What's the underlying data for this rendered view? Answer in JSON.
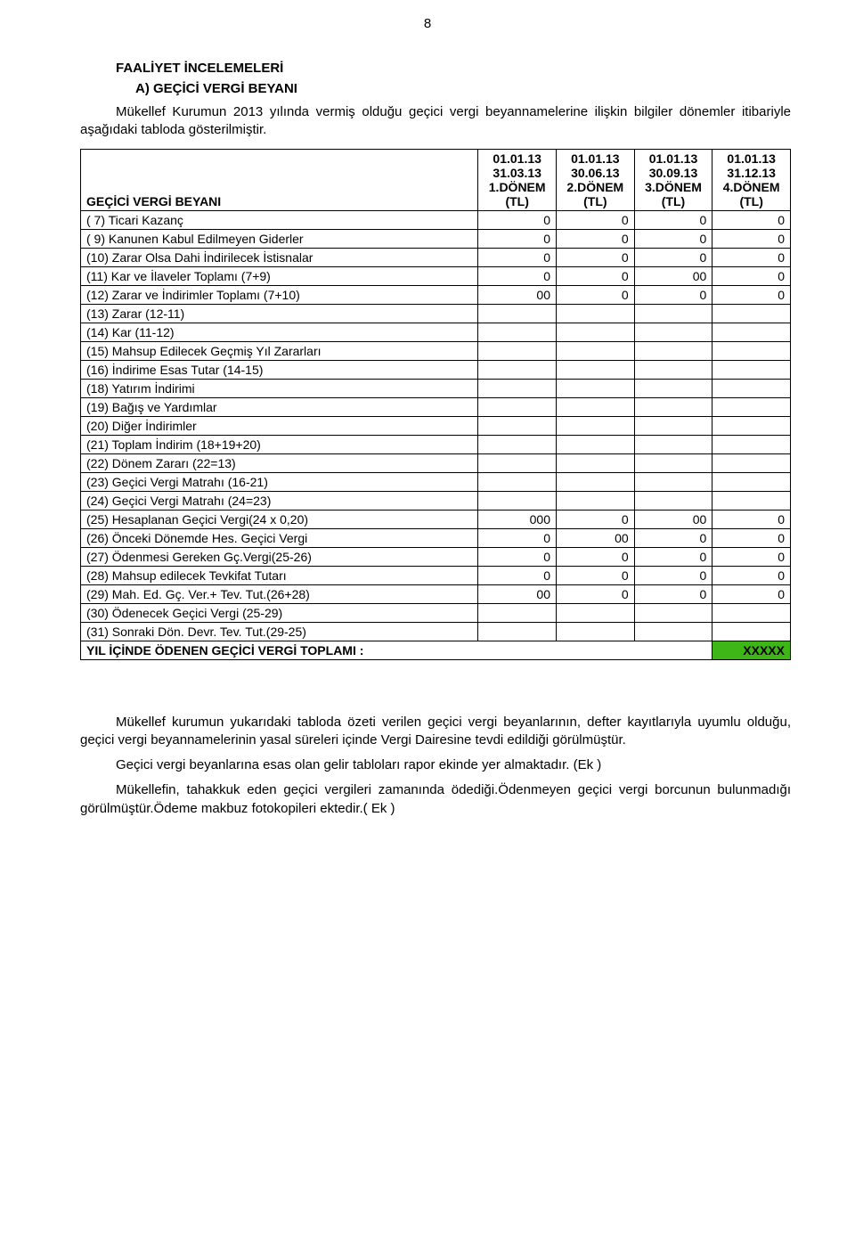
{
  "page_number": "8",
  "heading_main": "FAALİYET İNCELEMELERİ",
  "heading_sub": "A) GEÇİCİ VERGİ BEYANI",
  "intro_paragraph": "Mükellef Kurumun 2013 yılında vermiş olduğu geçici vergi beyannamelerine ilişkin bilgiler dönemler itibariyle aşağıdaki tabloda gösterilmiştir.",
  "table": {
    "row_label_header": "GEÇİCİ VERGİ BEYANI",
    "columns": [
      {
        "line1": "01.01.13",
        "line2": "31.03.13",
        "line3": "1.DÖNEM",
        "line4": "(TL)"
      },
      {
        "line1": "01.01.13",
        "line2": "30.06.13",
        "line3": "2.DÖNEM",
        "line4": "(TL)"
      },
      {
        "line1": "01.01.13",
        "line2": "30.09.13",
        "line3": "3.DÖNEM",
        "line4": "(TL)"
      },
      {
        "line1": "01.01.13",
        "line2": "31.12.13",
        "line3": "4.DÖNEM",
        "line4": "(TL)"
      }
    ],
    "rows": [
      {
        "label": "(  7) Ticari Kazanç",
        "v": [
          "0",
          "0",
          "0",
          "0"
        ]
      },
      {
        "label": "(  9) Kanunen Kabul Edilmeyen Giderler",
        "v": [
          "0",
          "0",
          "0",
          "0"
        ]
      },
      {
        "label": "(10) Zarar Olsa Dahi İndirilecek İstisnalar",
        "v": [
          "0",
          "0",
          "0",
          "0"
        ]
      },
      {
        "label": "(11) Kar ve İlaveler Toplamı             (7+9)",
        "v": [
          "0",
          "0",
          "00",
          "0"
        ]
      },
      {
        "label": "(12) Zarar ve İndirimler Toplamı   (7+10)",
        "v": [
          "00",
          "0",
          "0",
          "0"
        ]
      },
      {
        "label": "(13) Zarar                                   (12-11)",
        "v": [
          "",
          "",
          "",
          ""
        ]
      },
      {
        "label": "(14) Kar                                      (11-12)",
        "v": [
          "",
          "",
          "",
          ""
        ]
      },
      {
        "label": "(15) Mahsup Edilecek Geçmiş Yıl Zararları",
        "v": [
          "",
          "",
          "",
          ""
        ]
      },
      {
        "label": "(16) İndirime Esas Tutar               (14-15)",
        "v": [
          "",
          "",
          "",
          ""
        ]
      },
      {
        "label": "(18) Yatırım İndirimi",
        "v": [
          "",
          "",
          "",
          ""
        ]
      },
      {
        "label": "(19) Bağış ve Yardımlar",
        "v": [
          "",
          "",
          "",
          ""
        ]
      },
      {
        "label": "(20) Diğer İndirimler",
        "v": [
          "",
          "",
          "",
          ""
        ]
      },
      {
        "label": "(21) Toplam İndirim            (18+19+20)",
        "v": [
          "",
          "",
          "",
          ""
        ]
      },
      {
        "label": "(22) Dönem Zararı                    (22=13)",
        "v": [
          "",
          "",
          "",
          ""
        ]
      },
      {
        "label": "(23) Geçici Vergi Matrahı           (16-21)",
        "v": [
          "",
          "",
          "",
          ""
        ]
      },
      {
        "label": "(24) Geçici Vergi Matrahı           (24=23)",
        "v": [
          "",
          "",
          "",
          ""
        ]
      },
      {
        "label": "(25) Hesaplanan Geçici Vergi(24 x 0,20)",
        "v": [
          "000",
          "0",
          "00",
          "0"
        ]
      },
      {
        "label": "(26) Önceki Dönemde Hes. Geçici Vergi",
        "v": [
          "0",
          "00",
          "0",
          "0"
        ]
      },
      {
        "label": "(27) Ödenmesi Gereken Gç.Vergi(25-26)",
        "v": [
          "0",
          "0",
          "0",
          "0"
        ]
      },
      {
        "label": "(28) Mahsup edilecek Tevkifat Tutarı",
        "v": [
          "0",
          "0",
          "0",
          "0"
        ]
      },
      {
        "label": "(29) Mah. Ed. Gç. Ver.+ Tev. Tut.(26+28)",
        "v": [
          "00",
          "0",
          "0",
          "0"
        ]
      },
      {
        "label": "(30) Ödenecek Geçici Vergi        (25-29)",
        "v": [
          "",
          "",
          "",
          ""
        ]
      },
      {
        "label": "(31) Sonraki Dön. Devr. Tev. Tut.(29-25)",
        "v": [
          "",
          "",
          "",
          ""
        ]
      }
    ],
    "footer_label": "YIL İÇİNDE ÖDENEN GEÇİCİ VERGİ TOPLAMI :",
    "footer_value": "XXXXX"
  },
  "footer_paragraphs": [
    "Mükellef kurumun yukarıdaki tabloda özeti verilen geçici vergi beyanlarının, defter kayıtlarıyla uyumlu olduğu, geçici vergi beyannamelerinin yasal süreleri içinde Vergi Dairesine tevdi edildiği görülmüştür.",
    "Geçici vergi beyanlarına esas olan gelir tabloları rapor ekinde yer almaktadır. (Ek )",
    "Mükellefin, tahakkuk eden geçici vergileri zamanında ödediği.Ödenmeyen geçici vergi borcunun bulunmadığı görülmüştür.Ödeme makbuz fotokopileri ektedir.( Ek )"
  ],
  "colors": {
    "highlight_bg": "#3fb618",
    "text": "#000000",
    "page_bg": "#ffffff",
    "border": "#000000"
  },
  "font_sizes": {
    "body": 15,
    "table": 14
  }
}
